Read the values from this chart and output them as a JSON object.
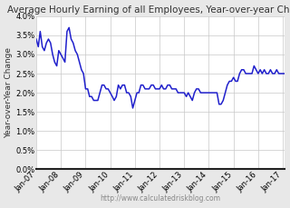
{
  "title": "Average Hourly Earning of all Employees, Year-over-year Change",
  "ylabel": "Year-over-Year Change",
  "watermark": "http://www.calculatedriskblog.com",
  "ylim": [
    0.0,
    0.04
  ],
  "yticks": [
    0.0,
    0.005,
    0.01,
    0.015,
    0.02,
    0.025,
    0.03,
    0.035,
    0.04
  ],
  "ytick_labels": [
    "0.0%",
    "0.5%",
    "1.0%",
    "1.5%",
    "2.0%",
    "2.5%",
    "3.0%",
    "3.5%",
    "4.0%"
  ],
  "xtick_labels": [
    "Jan-07",
    "Jan-08",
    "Jan-09",
    "Jan-10",
    "Jan-11",
    "Jan-12",
    "Jan-13",
    "Jan-14",
    "Jan-15",
    "Jan-16",
    "Jan-17"
  ],
  "line_color": "#2020cc",
  "fig_bg_color": "#e8e8e8",
  "plot_bg_color": "#ffffff",
  "grid_color": "#c8c8c8",
  "title_fontsize": 7.5,
  "ylabel_fontsize": 6.5,
  "tick_fontsize": 6.0,
  "watermark_fontsize": 5.5,
  "line_width": 1.1,
  "data": [
    0.034,
    0.032,
    0.036,
    0.032,
    0.031,
    0.033,
    0.034,
    0.033,
    0.03,
    0.028,
    0.027,
    0.031,
    0.03,
    0.029,
    0.028,
    0.036,
    0.037,
    0.034,
    0.033,
    0.031,
    0.03,
    0.028,
    0.026,
    0.025,
    0.021,
    0.021,
    0.019,
    0.019,
    0.018,
    0.018,
    0.018,
    0.02,
    0.022,
    0.022,
    0.021,
    0.021,
    0.02,
    0.019,
    0.018,
    0.019,
    0.022,
    0.021,
    0.022,
    0.022,
    0.02,
    0.02,
    0.019,
    0.016,
    0.018,
    0.02,
    0.02,
    0.022,
    0.022,
    0.021,
    0.021,
    0.021,
    0.022,
    0.022,
    0.021,
    0.021,
    0.021,
    0.022,
    0.021,
    0.021,
    0.022,
    0.022,
    0.021,
    0.021,
    0.021,
    0.02,
    0.02,
    0.02,
    0.02,
    0.019,
    0.02,
    0.019,
    0.018,
    0.02,
    0.021,
    0.021,
    0.02,
    0.02,
    0.02,
    0.02,
    0.02,
    0.02,
    0.02,
    0.02,
    0.02,
    0.017,
    0.017,
    0.018,
    0.02,
    0.022,
    0.023,
    0.023,
    0.024,
    0.023,
    0.023,
    0.025,
    0.026,
    0.026,
    0.025,
    0.025,
    0.025,
    0.025,
    0.027,
    0.026,
    0.025,
    0.026,
    0.025,
    0.026,
    0.025,
    0.025,
    0.026,
    0.025,
    0.025,
    0.026,
    0.025,
    0.025,
    0.025,
    0.025,
    0.025,
    0.025,
    0.025,
    0.025,
    0.026,
    0.026,
    0.027,
    0.025,
    0.026,
    0.025,
    0.026,
    0.025,
    0.026,
    0.026,
    0.026,
    0.026,
    0.025,
    0.025,
    0.025,
    0.025,
    0.025,
    0.025,
    0.025,
    0.025
  ]
}
